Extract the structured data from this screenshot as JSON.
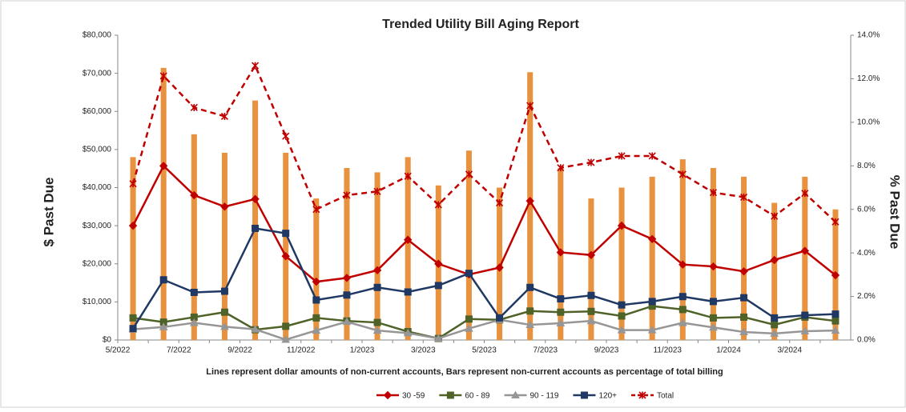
{
  "chart_data": {
    "type": "bar_line",
    "title": "Trended Utility Bill Aging Report",
    "ylabel": "$ Past Due",
    "y2label": "% Past Due",
    "caption": "Lines represent dollar amounts of non-current accounts, Bars represent non-current accounts as percentage of total billing",
    "categories": [
      "5/2022",
      null,
      "7/2022",
      null,
      "9/2022",
      null,
      "11/2022",
      null,
      "1/2023",
      null,
      "3/2023",
      null,
      "5/2023",
      null,
      "7/2023",
      null,
      "9/2023",
      null,
      "11/2023",
      null,
      "1/2024",
      null,
      "3/2024",
      null
    ],
    "ylim": [
      0,
      80000
    ],
    "yticks": [
      {
        "value": 0,
        "label": "$0"
      },
      {
        "value": 10000,
        "label": "$10,000"
      },
      {
        "value": 20000,
        "label": "$20,000"
      },
      {
        "value": 30000,
        "label": "$30,000"
      },
      {
        "value": 40000,
        "label": "$40,000"
      },
      {
        "value": 50000,
        "label": "$50,000"
      },
      {
        "value": 60000,
        "label": "$60,000"
      },
      {
        "value": 70000,
        "label": "$70,000"
      },
      {
        "value": 80000,
        "label": "$80,000"
      }
    ],
    "y2lim": [
      0,
      14
    ],
    "y2ticks": [
      {
        "value": 0,
        "label": "0.0%"
      },
      {
        "value": 2,
        "label": "2.0%"
      },
      {
        "value": 4,
        "label": "4.0%"
      },
      {
        "value": 6,
        "label": "6.0%"
      },
      {
        "value": 8,
        "label": "8.0%"
      },
      {
        "value": 10,
        "label": "10.0%"
      },
      {
        "value": 12,
        "label": "12.0%"
      },
      {
        "value": 14,
        "label": "14.0%"
      }
    ],
    "bars": {
      "axis": "y2",
      "color": "#e8913e",
      "values": [
        8.4,
        12.5,
        9.45,
        8.6,
        11.0,
        8.6,
        6.5,
        7.9,
        7.7,
        8.4,
        7.1,
        8.7,
        7.0,
        12.3,
        7.9,
        6.5,
        7.0,
        7.5,
        8.3,
        7.9,
        7.5,
        6.3,
        7.5,
        6.0
      ]
    },
    "series": [
      {
        "name": "30 -59",
        "color": "#c00000",
        "marker": "diamond",
        "dash": false,
        "values": [
          30000,
          45700,
          38000,
          35000,
          37000,
          22000,
          15300,
          16300,
          18300,
          26300,
          20000,
          17200,
          19000,
          36500,
          23000,
          22300,
          30000,
          26500,
          19800,
          19300,
          18000,
          21000,
          23400,
          17000
        ]
      },
      {
        "name": "60 - 89",
        "color": "#4f6228",
        "marker": "square",
        "dash": false,
        "values": [
          5800,
          4700,
          6000,
          7300,
          2700,
          3600,
          5800,
          5000,
          4600,
          2200,
          400,
          5500,
          5300,
          7600,
          7300,
          7500,
          6300,
          8900,
          8000,
          5800,
          6000,
          4000,
          6000,
          5000
        ]
      },
      {
        "name": "90 - 119",
        "color": "#969696",
        "marker": "triangle",
        "dash": false,
        "values": [
          2800,
          3400,
          4500,
          3500,
          2800,
          100,
          2500,
          4800,
          2500,
          1800,
          400,
          3000,
          5300,
          4000,
          4400,
          5000,
          2600,
          2600,
          4500,
          3300,
          2100,
          1700,
          2300,
          2500
        ]
      },
      {
        "name": "120+",
        "color": "#1f3864",
        "marker": "square",
        "dash": false,
        "values": [
          3000,
          15800,
          12500,
          12800,
          29300,
          28000,
          10500,
          11800,
          13800,
          12600,
          14300,
          17500,
          5800,
          13800,
          10800,
          11700,
          9200,
          10100,
          11400,
          10100,
          11100,
          5800,
          6500,
          6800
        ]
      },
      {
        "name": "Total",
        "color": "#c00000",
        "marker": "star",
        "dash": true,
        "values": [
          41000,
          69300,
          61000,
          58700,
          72000,
          53500,
          34300,
          38000,
          39000,
          43000,
          35500,
          43500,
          36000,
          61500,
          45200,
          46600,
          48300,
          48300,
          43500,
          38700,
          37500,
          32500,
          38500,
          31000
        ]
      }
    ]
  }
}
